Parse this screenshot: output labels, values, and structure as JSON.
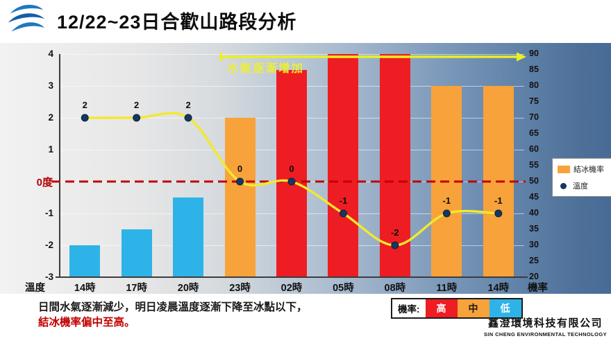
{
  "header": {
    "title": "12/22~23日合歡山路段分析"
  },
  "chart_data": {
    "type": "bar",
    "subtype": "combo bar+line, dual axis",
    "title": "12/22~23日合歡山路段分析",
    "categories": [
      "14時",
      "17時",
      "20時",
      "23時",
      "02時",
      "05時",
      "08時",
      "11時",
      "14時"
    ],
    "bar_series": {
      "name": "結冰機率",
      "axis": "right",
      "values": [
        30,
        35,
        45,
        70,
        85,
        90,
        90,
        80,
        80
      ],
      "levels": [
        "low",
        "low",
        "low",
        "mid",
        "high",
        "high",
        "high",
        "mid",
        "mid"
      ]
    },
    "line_series": {
      "name": "溫度",
      "axis": "left",
      "values": [
        2,
        2,
        2,
        0,
        0,
        -1,
        -2,
        -1,
        -1
      ],
      "labels": [
        "2",
        "2",
        "2",
        "0",
        "0",
        "-1",
        "-2",
        "-1",
        "-1"
      ]
    },
    "left_axis": {
      "title": "溫度",
      "min": -3,
      "max": 4,
      "ticks": [
        4,
        3,
        2,
        1,
        -1,
        -2,
        -3
      ],
      "zero_label": "0度"
    },
    "right_axis": {
      "title": "機率",
      "min": 20,
      "max": 90,
      "ticks": [
        90,
        85,
        80,
        75,
        70,
        65,
        60,
        55,
        50,
        45,
        40,
        35,
        30,
        25,
        20
      ]
    },
    "annotation": {
      "text": "水氣逐漸增加"
    },
    "zero_reference_line": 0,
    "grid": true,
    "legend": {
      "position": "right",
      "items": [
        {
          "label": "結冰機率",
          "type": "bar"
        },
        {
          "label": "溫度",
          "type": "dot"
        }
      ]
    }
  },
  "colors": {
    "high": "#ee1d23",
    "mid": "#f8a23b",
    "low": "#2eb3e8",
    "line": "#f2e92e",
    "dot": "#17375e",
    "zero_line": "#c00000",
    "arrow": "#e9f021"
  },
  "footer": {
    "note_line1": "日間水氣逐漸減少，明日凌晨溫度逐漸下降至冰點以下，",
    "note_line2": "結冰機率偏中至高。",
    "prob_legend": {
      "label": "機率:",
      "items": [
        {
          "label": "高",
          "level": "high"
        },
        {
          "label": "中",
          "level": "mid"
        },
        {
          "label": "低",
          "level": "low"
        }
      ]
    },
    "company": {
      "zh": "鑫澄環境科技有限公司",
      "en": "SIN CHENG ENVIRONMENTAL TECHNOLOGY"
    }
  }
}
